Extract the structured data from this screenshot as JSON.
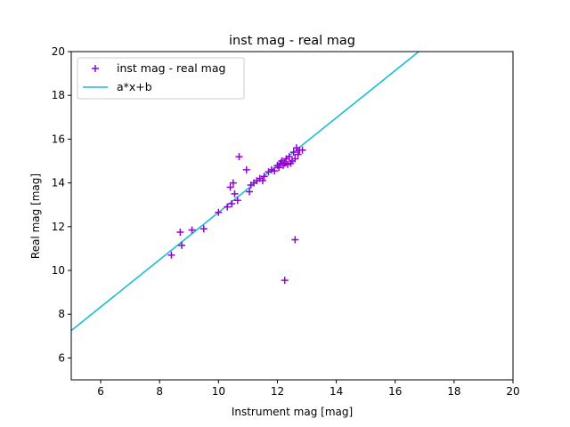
{
  "chart_data": {
    "type": "scatter",
    "title": "inst mag - real mag",
    "xlabel": "Instrument mag [mag]",
    "ylabel": "Real mag [mag]",
    "xlim": [
      5,
      20
    ],
    "ylim": [
      5,
      20
    ],
    "xticks": [
      6,
      8,
      10,
      12,
      14,
      16,
      18,
      20
    ],
    "yticks": [
      6,
      8,
      10,
      12,
      14,
      16,
      18,
      20
    ],
    "grid": false,
    "legend_position": "top-left",
    "series": [
      {
        "name": "inst mag - real mag",
        "kind": "scatter",
        "marker": "plus",
        "color": "#9400d3",
        "x": [
          8.4,
          8.7,
          8.75,
          9.1,
          9.5,
          10.0,
          10.3,
          10.4,
          10.45,
          10.5,
          10.55,
          10.65,
          10.7,
          10.95,
          11.05,
          11.1,
          11.2,
          11.3,
          11.4,
          11.5,
          11.55,
          11.7,
          11.8,
          11.9,
          12.0,
          12.05,
          12.1,
          12.15,
          12.2,
          12.25,
          12.3,
          12.35,
          12.4,
          12.45,
          12.5,
          12.55,
          12.6,
          12.65,
          12.7,
          12.75,
          12.85,
          12.25,
          12.6
        ],
        "y": [
          10.7,
          11.75,
          11.15,
          11.85,
          11.9,
          12.65,
          12.9,
          13.8,
          13.05,
          14.0,
          13.5,
          13.2,
          15.2,
          14.6,
          13.6,
          13.9,
          14.0,
          14.1,
          14.2,
          14.1,
          14.3,
          14.5,
          14.6,
          14.55,
          14.8,
          14.7,
          14.9,
          15.0,
          14.8,
          14.9,
          15.1,
          14.85,
          15.2,
          14.9,
          15.0,
          15.4,
          15.1,
          15.6,
          15.3,
          15.5,
          15.5,
          9.55,
          11.4
        ]
      },
      {
        "name": "a*x+b",
        "kind": "line",
        "color": "#17becf",
        "x": [
          5,
          16.8
        ],
        "y": [
          7.25,
          20.0
        ]
      }
    ]
  }
}
